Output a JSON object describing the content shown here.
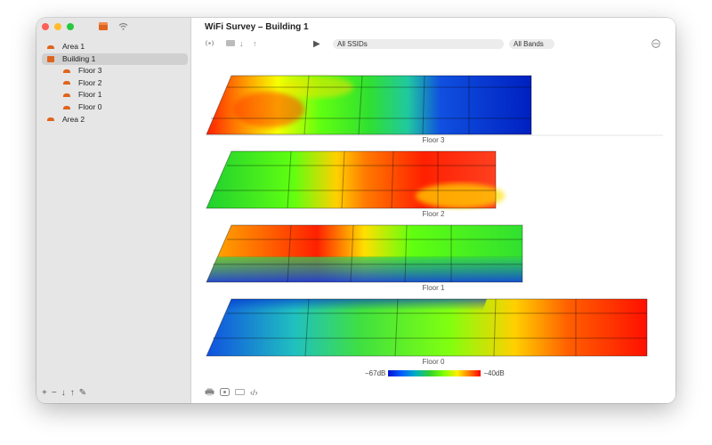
{
  "window": {
    "title": "WiFi Survey – Building 1"
  },
  "sidebar": {
    "top_icons": [
      "building-icon",
      "wifi-icon"
    ],
    "items": [
      {
        "label": "Area 1",
        "level": 0,
        "icon": "area-icon",
        "selected": false
      },
      {
        "label": "Building 1",
        "level": 0,
        "icon": "building-icon",
        "selected": true
      },
      {
        "label": "Floor 3",
        "level": 1,
        "icon": "floor-icon",
        "selected": false
      },
      {
        "label": "Floor 2",
        "level": 1,
        "icon": "floor-icon",
        "selected": false
      },
      {
        "label": "Floor 1",
        "level": 1,
        "icon": "floor-icon",
        "selected": false
      },
      {
        "label": "Floor 0",
        "level": 1,
        "icon": "floor-icon",
        "selected": false
      },
      {
        "label": "Area 2",
        "level": 0,
        "icon": "area-icon",
        "selected": false
      }
    ],
    "bottom_actions": [
      "+",
      "−",
      "↓",
      "↑",
      "✎"
    ]
  },
  "toolbar": {
    "ssid_filter": "All SSIDs",
    "band_filter": "All Bands"
  },
  "floors": [
    {
      "label": "Floor 3"
    },
    {
      "label": "Floor 2"
    },
    {
      "label": "Floor 1"
    },
    {
      "label": "Floor 0"
    }
  ],
  "legend": {
    "min_label": "−67dB",
    "max_label": "−40dB"
  },
  "colors": {
    "accent": "#e0641e",
    "selection": "#d0d0d0"
  }
}
